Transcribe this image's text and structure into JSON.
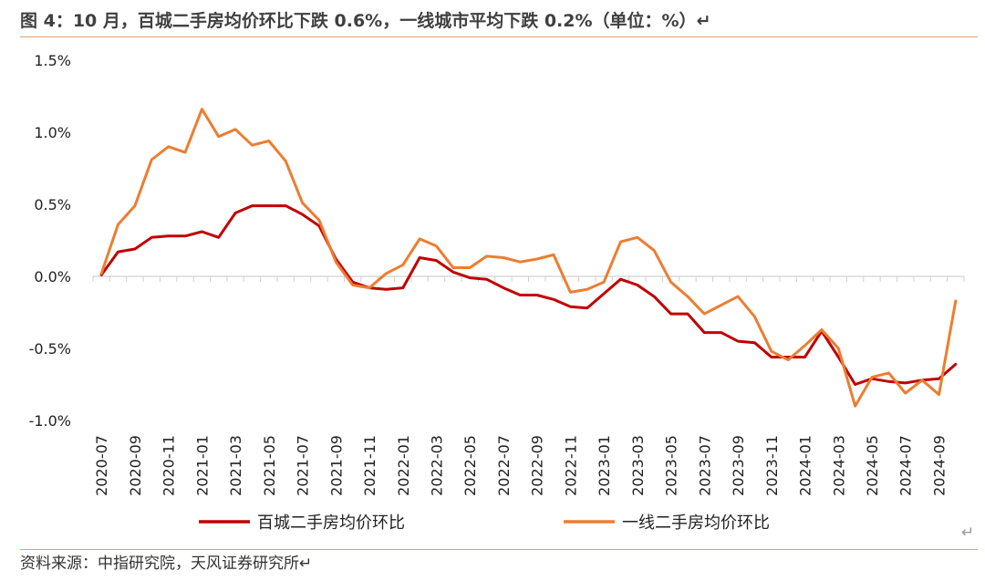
{
  "header": {
    "title": "图 4：10 月，百城二手房均价环比下跌 0.6%，一线城市平均下跌 0.2%（单位：%）",
    "return_mark": "↵"
  },
  "footer": {
    "source": "资料来源：中指研究院，天风证券研究所",
    "return_mark": "↵"
  },
  "chart_data": {
    "type": "line",
    "title": "",
    "xlabel": "",
    "ylabel": "",
    "ylim": [
      -1.0,
      1.5
    ],
    "yticks": [
      1.5,
      1.0,
      0.5,
      0.0,
      -0.5,
      -1.0
    ],
    "ytick_labels": [
      "1.5%",
      "1.0%",
      "0.5%",
      "0.0%",
      "-0.5%",
      "-1.0%"
    ],
    "x": [
      "2020-07",
      "2020-08",
      "2020-09",
      "2020-10",
      "2020-11",
      "2020-12",
      "2021-01",
      "2021-02",
      "2021-03",
      "2021-04",
      "2021-05",
      "2021-06",
      "2021-07",
      "2021-08",
      "2021-09",
      "2021-10",
      "2021-11",
      "2021-12",
      "2022-01",
      "2022-02",
      "2022-03",
      "2022-04",
      "2022-05",
      "2022-06",
      "2022-07",
      "2022-08",
      "2022-09",
      "2022-10",
      "2022-11",
      "2022-12",
      "2023-01",
      "2023-02",
      "2023-03",
      "2023-04",
      "2023-05",
      "2023-06",
      "2023-07",
      "2023-08",
      "2023-09",
      "2023-10",
      "2023-11",
      "2023-12",
      "2024-01",
      "2024-02",
      "2024-03",
      "2024-04",
      "2024-05",
      "2024-06",
      "2024-07",
      "2024-08",
      "2024-09",
      "2024-10"
    ],
    "x_tick_labels": [
      "2020-07",
      "2020-09",
      "2020-11",
      "2021-01",
      "2021-03",
      "2021-05",
      "2021-07",
      "2021-09",
      "2021-11",
      "2022-01",
      "2022-03",
      "2022-05",
      "2022-07",
      "2022-09",
      "2022-11",
      "2023-01",
      "2023-03",
      "2023-05",
      "2023-07",
      "2023-09",
      "2023-11",
      "2024-01",
      "2024-03",
      "2024-05",
      "2024-07",
      "2024-09"
    ],
    "grid": false,
    "legend_position": "bottom",
    "series": [
      {
        "name": "百城二手房均价环比",
        "color": "#c00000",
        "values": [
          0.01,
          0.17,
          0.19,
          0.27,
          0.28,
          0.28,
          0.31,
          0.27,
          0.44,
          0.49,
          0.49,
          0.49,
          0.43,
          0.35,
          0.12,
          -0.04,
          -0.08,
          -0.09,
          -0.08,
          0.13,
          0.11,
          0.03,
          -0.01,
          -0.02,
          -0.08,
          -0.13,
          -0.13,
          -0.16,
          -0.21,
          -0.22,
          -0.12,
          -0.02,
          -0.06,
          -0.14,
          -0.26,
          -0.26,
          -0.39,
          -0.39,
          -0.45,
          -0.46,
          -0.56,
          -0.56,
          -0.56,
          -0.38,
          -0.56,
          -0.75,
          -0.71,
          -0.73,
          -0.74,
          -0.72,
          -0.71,
          -0.61
        ]
      },
      {
        "name": "一线二手房均价环比",
        "color": "#ed7d31",
        "values": [
          0.02,
          0.36,
          0.49,
          0.81,
          0.9,
          0.86,
          1.16,
          0.97,
          1.02,
          0.91,
          0.94,
          0.8,
          0.51,
          0.39,
          0.1,
          -0.06,
          -0.08,
          0.02,
          0.08,
          0.26,
          0.21,
          0.06,
          0.06,
          0.14,
          0.13,
          0.1,
          0.12,
          0.15,
          -0.11,
          -0.09,
          -0.04,
          0.24,
          0.27,
          0.18,
          -0.04,
          -0.14,
          -0.26,
          -0.2,
          -0.14,
          -0.28,
          -0.52,
          -0.58,
          -0.48,
          -0.37,
          -0.5,
          -0.9,
          -0.7,
          -0.67,
          -0.81,
          -0.72,
          -0.82,
          -0.17
        ]
      }
    ]
  }
}
